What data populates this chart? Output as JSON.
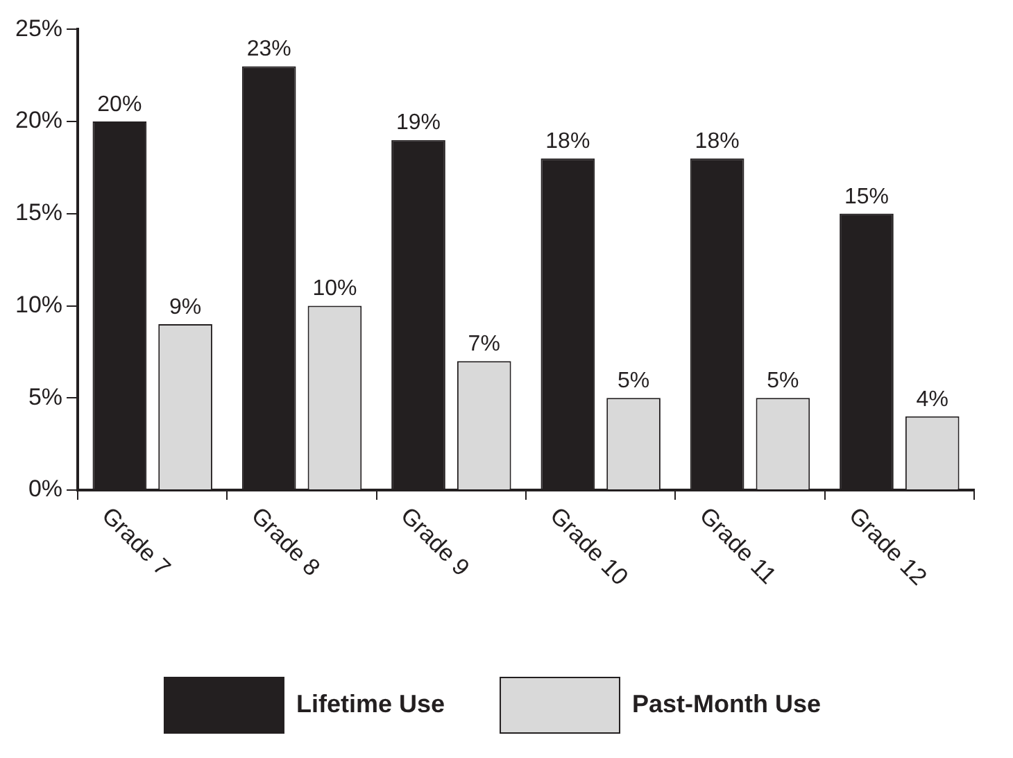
{
  "chart_data": {
    "type": "bar",
    "categories": [
      "Grade 7",
      "Grade 8",
      "Grade 9",
      "Grade 10",
      "Grade 11",
      "Grade 12"
    ],
    "series": [
      {
        "name": "Lifetime Use",
        "color": "#231f20",
        "values": [
          20,
          23,
          19,
          18,
          18,
          15
        ],
        "value_labels": [
          "20%",
          "23%",
          "19%",
          "18%",
          "18%",
          "15%"
        ]
      },
      {
        "name": "Past-Month Use",
        "color": "#d9d9d9",
        "values": [
          9,
          10,
          7,
          5,
          5,
          4
        ],
        "value_labels": [
          "9%",
          "10%",
          "7%",
          "5%",
          "5%",
          "4%"
        ]
      }
    ],
    "ylim": [
      0,
      25
    ],
    "yticks": [
      {
        "value": 0,
        "label": "0%"
      },
      {
        "value": 5,
        "label": "5%"
      },
      {
        "value": 10,
        "label": "10%"
      },
      {
        "value": 15,
        "label": "15%"
      },
      {
        "value": 20,
        "label": "20%"
      },
      {
        "value": 25,
        "label": "25%"
      }
    ],
    "legend": "bottom"
  }
}
